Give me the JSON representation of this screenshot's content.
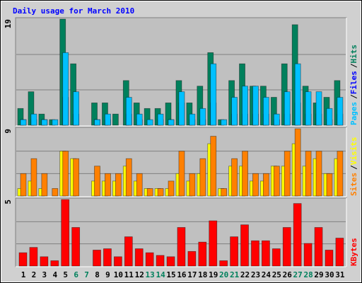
{
  "chart_data": [
    {
      "type": "bar",
      "title": "Daily usage for March 2010",
      "legend_separator": "/",
      "ylim": [
        0,
        19
      ],
      "yticks": [
        19
      ],
      "series": [
        {
          "name": "Hits",
          "color": "#00805c",
          "values": [
            3,
            6,
            2,
            1,
            19,
            11,
            0,
            4,
            4,
            2,
            8,
            4,
            3,
            3,
            4,
            8,
            4,
            7,
            13,
            1,
            8,
            11,
            7,
            7,
            5,
            11,
            18,
            7,
            4,
            5,
            8
          ]
        },
        {
          "name": "Files",
          "color": "#0000ff",
          "values": [
            1,
            1,
            1,
            0,
            5,
            2,
            0,
            1,
            1,
            0,
            2,
            1,
            0,
            1,
            1,
            4,
            1,
            1,
            4,
            0,
            2,
            2,
            2,
            2,
            1,
            2,
            4,
            2,
            2,
            1,
            2
          ]
        },
        {
          "name": "Pages",
          "color": "#00c0ff",
          "values": [
            1,
            2,
            1,
            1,
            13,
            6,
            0,
            1,
            2,
            0,
            5,
            2,
            1,
            2,
            1,
            6,
            2,
            3,
            11,
            1,
            5,
            7,
            7,
            5,
            2,
            6,
            11,
            6,
            6,
            3,
            5
          ]
        }
      ]
    },
    {
      "type": "bar",
      "ylim": [
        0,
        9
      ],
      "yticks": [
        9
      ],
      "series": [
        {
          "name": "Visits",
          "color": "#ffff00",
          "values": [
            1,
            2,
            1,
            0,
            6,
            5,
            0,
            2,
            2,
            2,
            4,
            2,
            1,
            1,
            1,
            3,
            2,
            3,
            7,
            1,
            4,
            4,
            2,
            2,
            4,
            4,
            7,
            4,
            5,
            3,
            5
          ]
        },
        {
          "name": "Sites",
          "color": "#ff8000",
          "values": [
            3,
            5,
            3,
            1,
            6,
            5,
            0,
            4,
            3,
            3,
            5,
            3,
            1,
            1,
            2,
            6,
            3,
            5,
            8,
            1,
            5,
            6,
            3,
            3,
            4,
            6,
            9,
            6,
            6,
            3,
            6
          ]
        }
      ]
    },
    {
      "type": "bar",
      "ylim": [
        0,
        5
      ],
      "yticks": [
        5
      ],
      "categories": [
        "1",
        "2",
        "3",
        "4",
        "5",
        "6",
        "7",
        "8",
        "9",
        "10",
        "11",
        "12",
        "13",
        "14",
        "15",
        "16",
        "17",
        "18",
        "19",
        "20",
        "21",
        "22",
        "23",
        "24",
        "25",
        "26",
        "27",
        "28",
        "29",
        "30",
        "31"
      ],
      "category_colors": [
        "#000000",
        "#000000",
        "#000000",
        "#000000",
        "#000000",
        "#00805c",
        "#00805c",
        "#000000",
        "#000000",
        "#000000",
        "#000000",
        "#000000",
        "#00805c",
        "#00805c",
        "#000000",
        "#000000",
        "#000000",
        "#000000",
        "#000000",
        "#00805c",
        "#00805c",
        "#000000",
        "#000000",
        "#000000",
        "#000000",
        "#000000",
        "#00805c",
        "#00805c",
        "#000000",
        "#000000",
        "#000000"
      ],
      "series": [
        {
          "name": "KBytes",
          "color": "#ff0000",
          "values": [
            1.0,
            1.4,
            0.7,
            0.4,
            5.0,
            2.9,
            0,
            1.2,
            1.3,
            0.7,
            2.2,
            1.3,
            1.0,
            0.8,
            0.7,
            2.9,
            1.1,
            1.8,
            3.4,
            0.4,
            2.2,
            3.1,
            1.9,
            1.9,
            1.3,
            2.9,
            4.7,
            1.7,
            2.9,
            1.2,
            2.1
          ]
        }
      ]
    }
  ]
}
